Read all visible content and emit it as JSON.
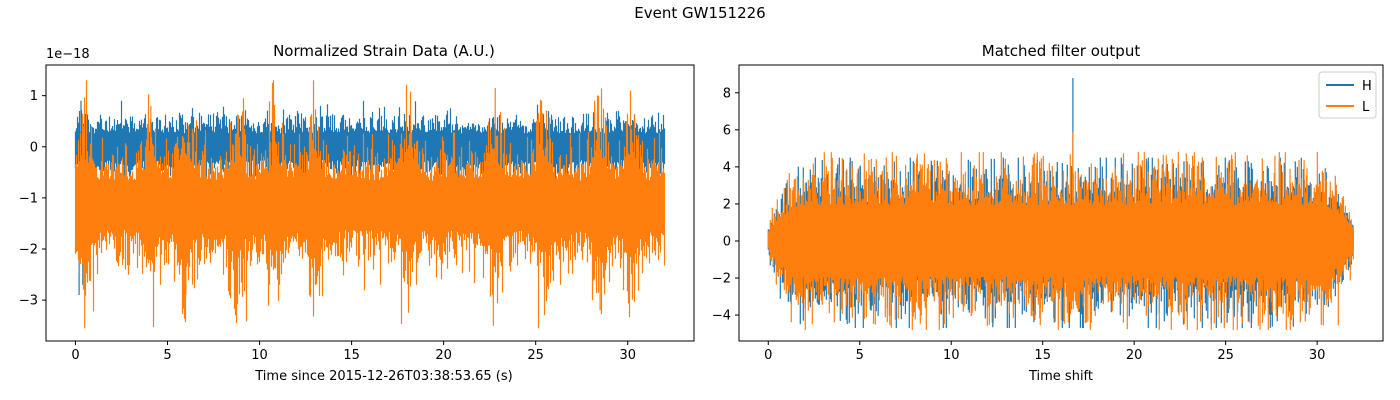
{
  "figure": {
    "suptitle": "Event GW151226"
  },
  "chart_data": [
    {
      "type": "line",
      "title": "Normalized Strain Data (A.U.)",
      "xlabel": "Time since 2015-12-26T03:38:53.65 (s)",
      "ylabel": "",
      "offset_text": "1e−18",
      "xlim": [
        -1.6,
        33.6
      ],
      "ylim": [
        -3.8,
        1.6
      ],
      "x_ticks": [
        0,
        5,
        10,
        15,
        20,
        25,
        30
      ],
      "y_ticks": [
        1,
        0,
        -1,
        -2,
        -3
      ],
      "grid": false,
      "x_range": [
        0,
        32
      ],
      "series": [
        {
          "color": "#1f77b4",
          "center": 0.0,
          "typical_range": [
            -0.5,
            0.45
          ],
          "extremes": [
            0.9,
            -2.9
          ]
        },
        {
          "color": "#ff7f0e",
          "center": -1.15,
          "typical_range": [
            -2.6,
            0.6
          ],
          "extremes": [
            1.3,
            -3.55
          ]
        }
      ]
    },
    {
      "type": "line",
      "title": "Matched filter output",
      "xlabel": "Time shift",
      "ylabel": "",
      "xlim": [
        -1.6,
        33.6
      ],
      "ylim": [
        -5.4,
        9.5
      ],
      "x_ticks": [
        0,
        5,
        10,
        15,
        20,
        25,
        30
      ],
      "y_ticks": [
        8,
        6,
        4,
        2,
        0,
        -2,
        -4
      ],
      "grid": false,
      "legend_position": "top-right",
      "x_range": [
        0,
        32
      ],
      "series": [
        {
          "name": "H",
          "color": "#1f77b4",
          "peak": {
            "x": 16.65,
            "y": 8.8
          },
          "typical_range": [
            -3.2,
            3.2
          ],
          "extremes": [
            4.5,
            -4.7
          ]
        },
        {
          "name": "L",
          "color": "#ff7f0e",
          "peak": {
            "x": 16.65,
            "y": 5.9
          },
          "typical_range": [
            -3.2,
            3.2
          ],
          "extremes": [
            4.8,
            -4.8
          ]
        }
      ]
    }
  ]
}
